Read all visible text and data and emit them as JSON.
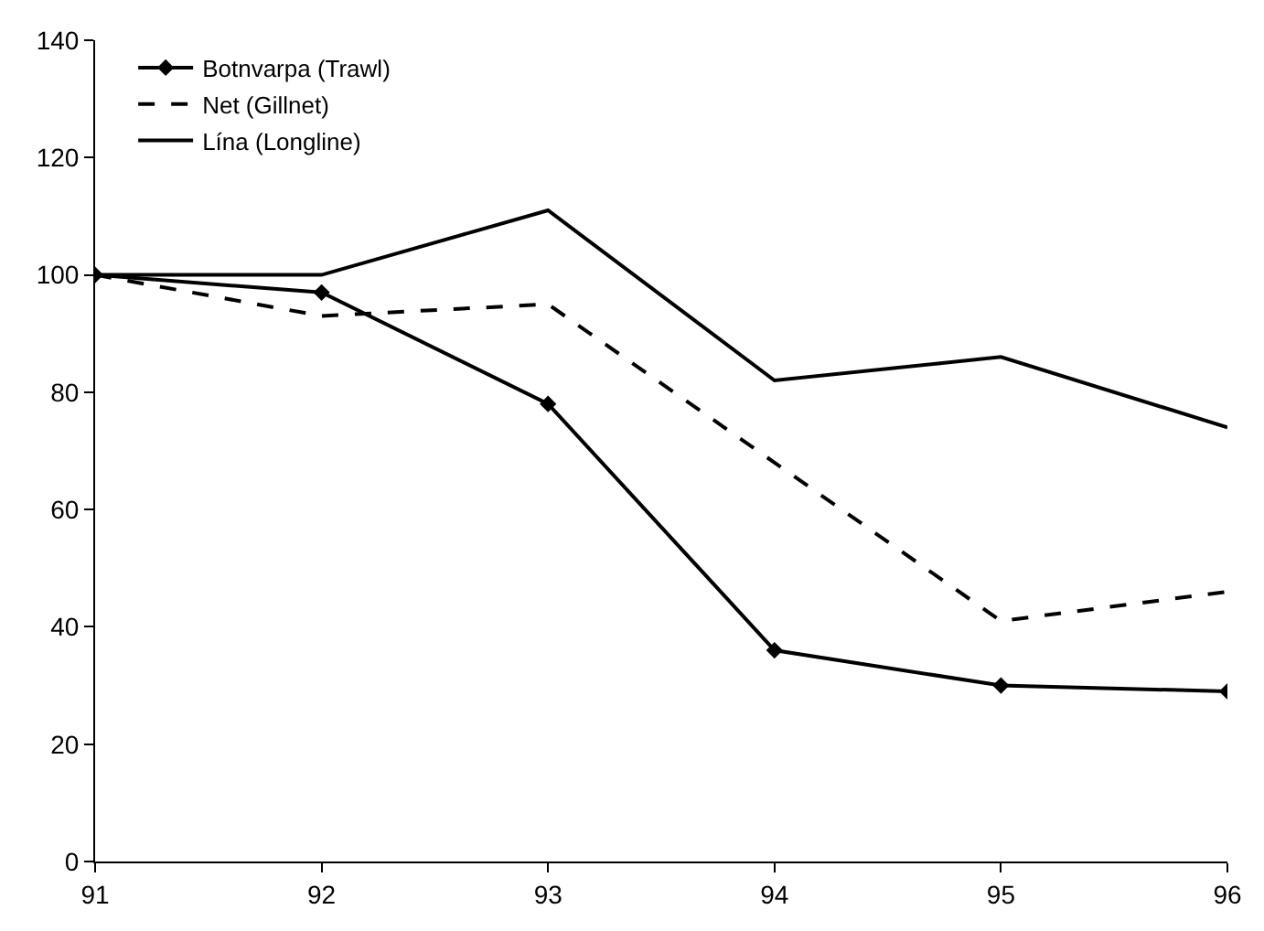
{
  "chart_data": {
    "type": "line",
    "x": [
      91,
      92,
      93,
      94,
      95,
      96
    ],
    "xlim": [
      91,
      96
    ],
    "xticks": [
      91,
      92,
      93,
      94,
      95,
      96
    ],
    "ylim": [
      0,
      140
    ],
    "yticks": [
      0,
      20,
      40,
      60,
      80,
      100,
      120,
      140
    ],
    "grid": false,
    "legend": "top left",
    "series": [
      {
        "name": "Botnvarpa (Trawl)",
        "color": "#000000",
        "marker": "diamond",
        "line_style": "solid",
        "values": [
          100,
          97,
          78,
          36,
          30,
          29
        ]
      },
      {
        "name": "Net (Gillnet)",
        "color": "#000000",
        "marker": "none",
        "line_style": "dashed",
        "values": [
          100,
          93,
          95,
          68,
          41,
          46
        ]
      },
      {
        "name": "Lína (Longline)",
        "color": "#000000",
        "marker": "none",
        "line_style": "solid",
        "values": [
          100,
          100,
          111,
          82,
          86,
          74
        ]
      }
    ]
  }
}
